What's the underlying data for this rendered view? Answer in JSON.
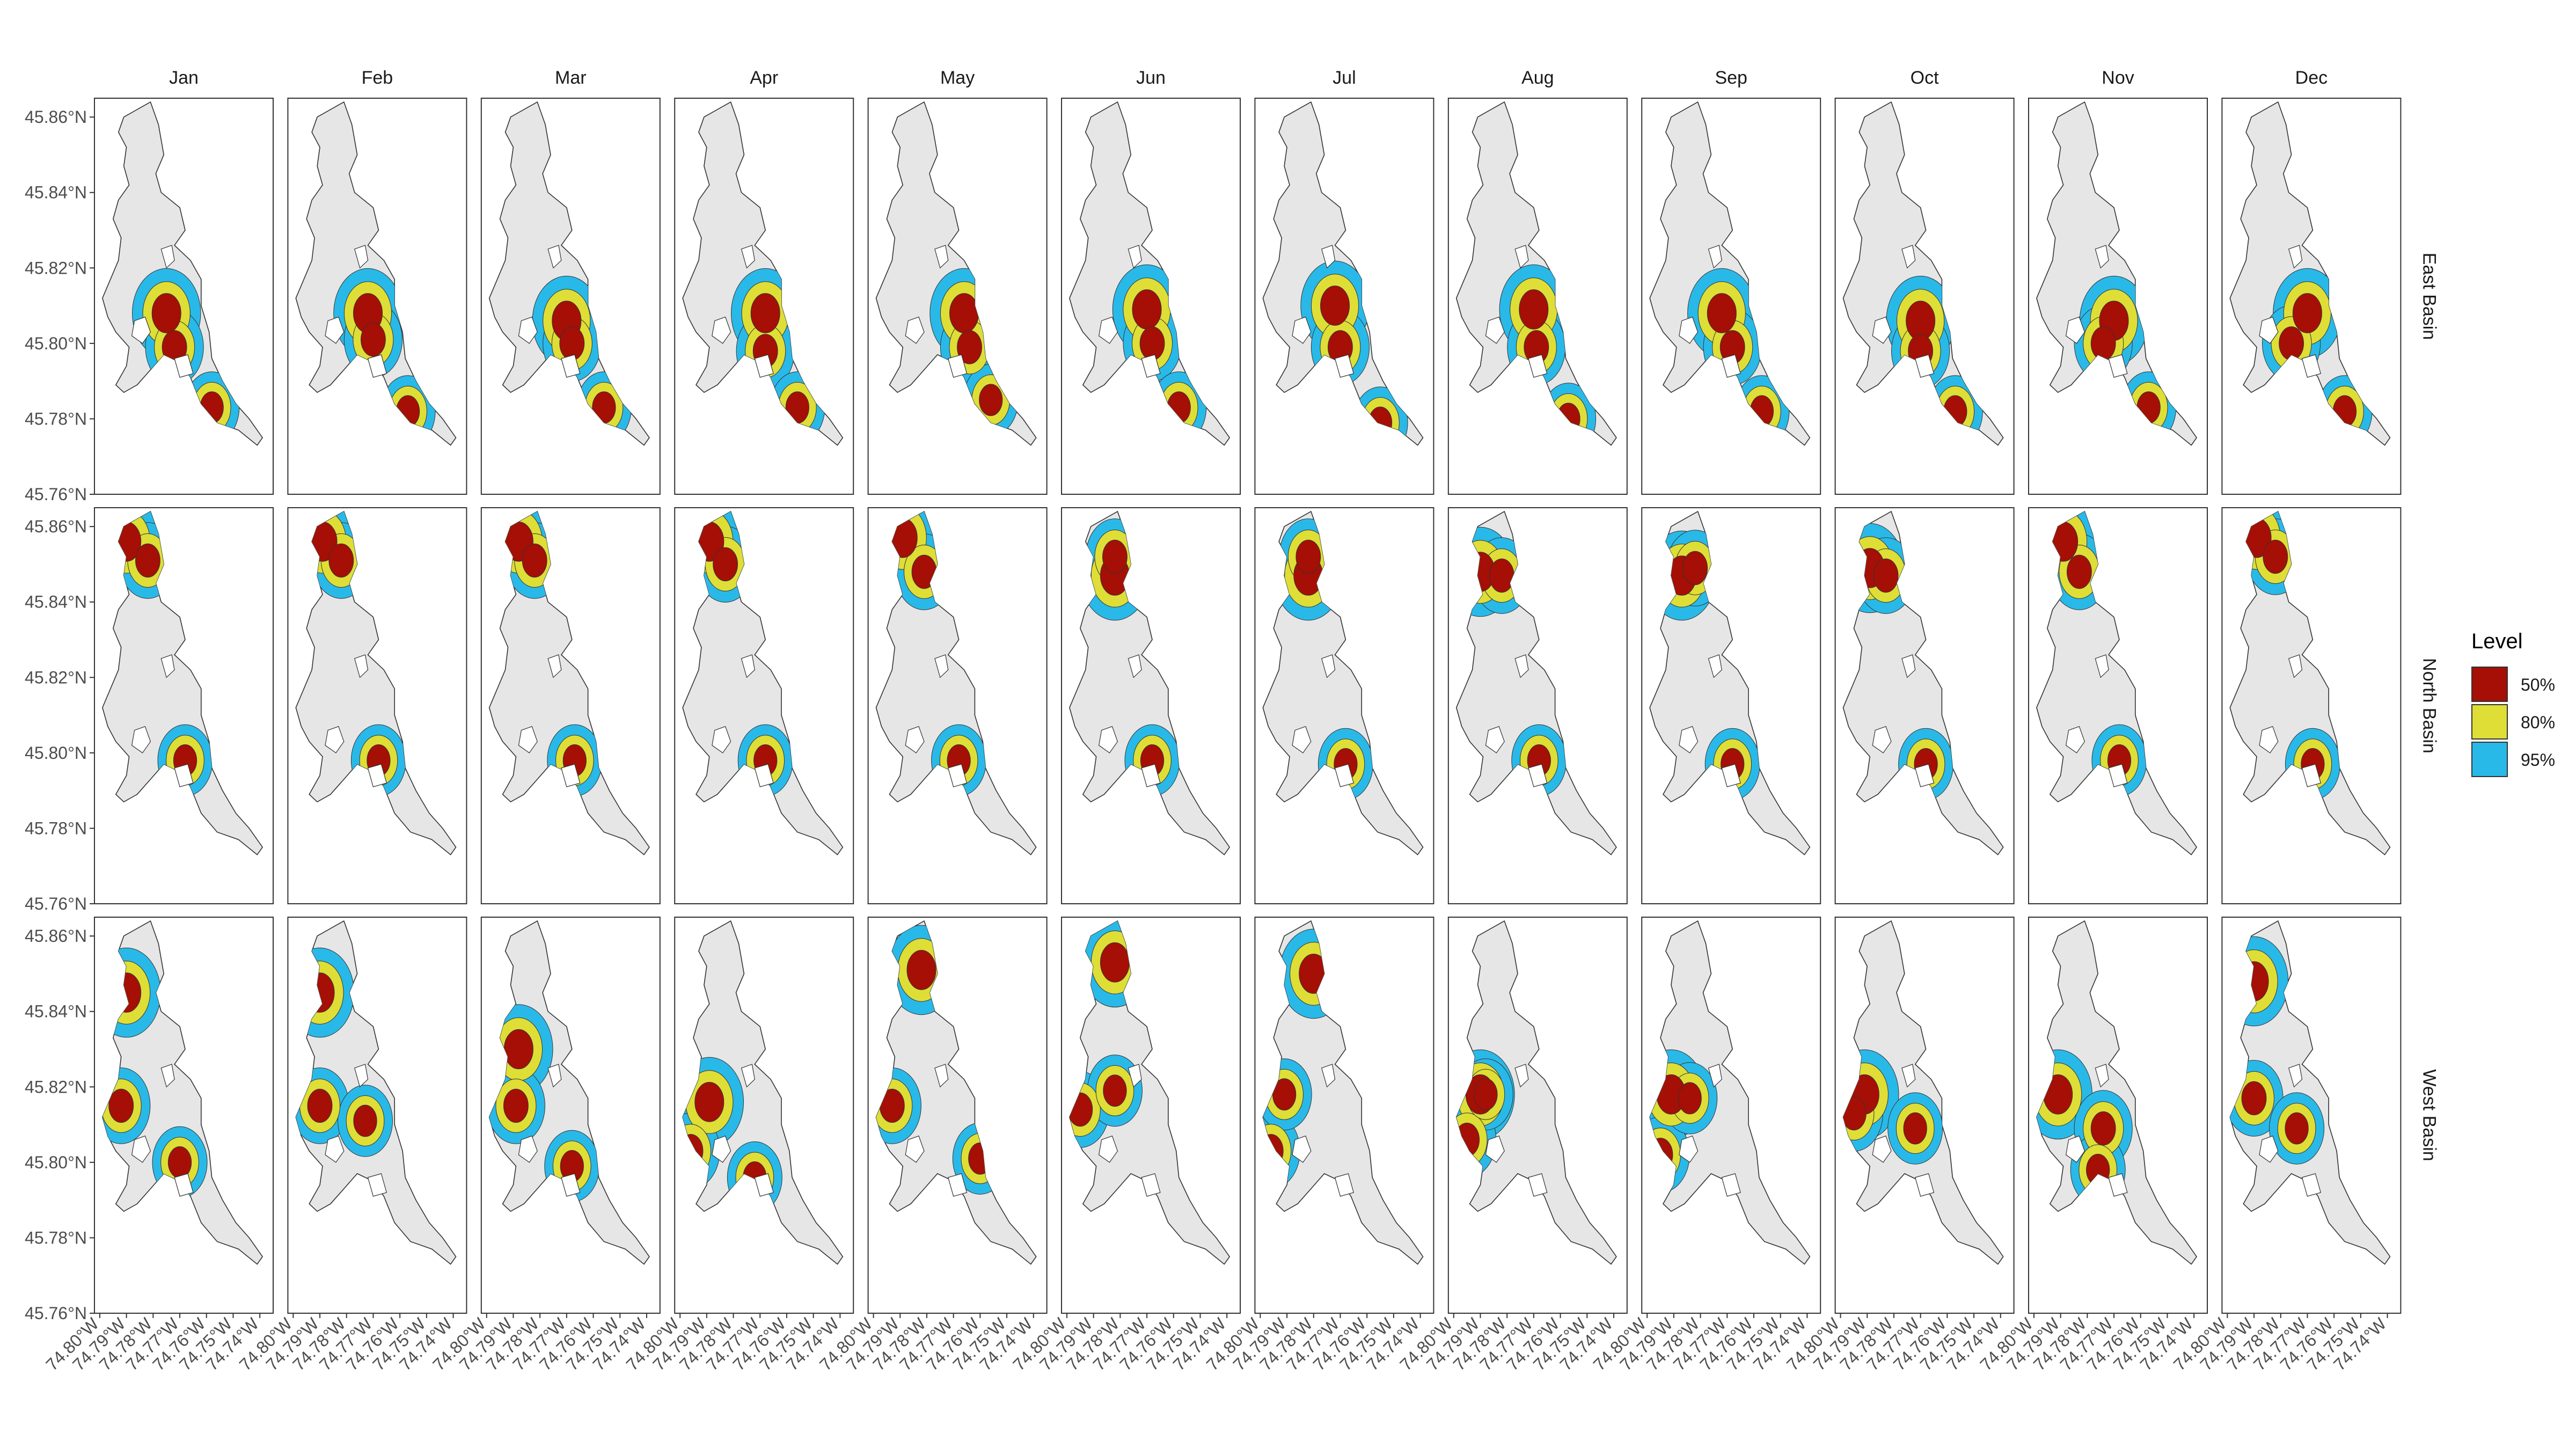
{
  "chart_data": {
    "type": "contour-map-facets",
    "facet_columns": [
      "Jan",
      "Feb",
      "Mar",
      "Apr",
      "May",
      "Jun",
      "Jul",
      "Aug",
      "Sep",
      "Oct",
      "Nov",
      "Dec"
    ],
    "facet_rows": [
      "East Basin",
      "North Basin",
      "West Basin"
    ],
    "y_ticks": [
      "45.86°N",
      "45.84°N",
      "45.82°N",
      "45.80°N",
      "45.78°N",
      "45.76°N"
    ],
    "y_values": [
      45.86,
      45.84,
      45.82,
      45.8,
      45.78,
      45.76
    ],
    "ylim": [
      45.76,
      45.865
    ],
    "x_ticks": [
      "74.80°W",
      "74.79°W",
      "74.78°W",
      "74.77°W",
      "74.76°W",
      "74.75°W",
      "74.74°W"
    ],
    "x_values": [
      -74.8,
      -74.79,
      -74.78,
      -74.77,
      -74.76,
      -74.75,
      -74.74
    ],
    "xlim": [
      -74.802,
      -74.735
    ],
    "legend": {
      "title": "Level",
      "position": "right",
      "entries": [
        {
          "label": "50%",
          "color": "#a50f05"
        },
        {
          "label": "80%",
          "color": "#dede36"
        },
        {
          "label": "95%",
          "color": "#29b9e8"
        }
      ]
    },
    "lake_fill": "#e6e6e6",
    "grid": false,
    "density_centers": {
      "East Basin": [
        [
          [
            -74.775,
            45.808
          ],
          [
            -74.772,
            45.799
          ],
          [
            -74.758,
            45.783
          ]
        ],
        [
          [
            -74.772,
            45.808
          ],
          [
            -74.77,
            45.801
          ],
          [
            -74.757,
            45.782
          ]
        ],
        [
          [
            -74.77,
            45.806
          ],
          [
            -74.768,
            45.8
          ],
          [
            -74.756,
            45.783
          ]
        ],
        [
          [
            -74.768,
            45.808
          ],
          [
            -74.768,
            45.798
          ],
          [
            -74.756,
            45.783
          ]
        ],
        [
          [
            -74.766,
            45.808
          ],
          [
            -74.764,
            45.799
          ],
          [
            -74.756,
            45.785
          ]
        ],
        [
          [
            -74.77,
            45.809
          ],
          [
            -74.768,
            45.8
          ],
          [
            -74.758,
            45.783
          ]
        ],
        [
          [
            -74.772,
            45.81
          ],
          [
            -74.77,
            45.799
          ],
          [
            -74.755,
            45.779
          ]
        ],
        [
          [
            -74.77,
            45.809
          ],
          [
            -74.769,
            45.799
          ],
          [
            -74.757,
            45.78
          ]
        ],
        [
          [
            -74.772,
            45.808
          ],
          [
            -74.768,
            45.799
          ],
          [
            -74.757,
            45.782
          ]
        ],
        [
          [
            -74.77,
            45.806
          ],
          [
            -74.77,
            45.798
          ],
          [
            -74.757,
            45.782
          ]
        ],
        [
          [
            -74.77,
            45.806
          ],
          [
            -74.774,
            45.8
          ],
          [
            -74.757,
            45.783
          ]
        ],
        [
          [
            -74.77,
            45.808
          ],
          [
            -74.776,
            45.8
          ],
          [
            -74.756,
            45.782
          ]
        ]
      ],
      "North Basin": [
        [
          [
            -74.79,
            45.856
          ],
          [
            -74.782,
            45.851
          ],
          [
            -74.768,
            45.798
          ]
        ],
        [
          [
            -74.789,
            45.856
          ],
          [
            -74.782,
            45.851
          ],
          [
            -74.768,
            45.798
          ]
        ],
        [
          [
            -74.788,
            45.856
          ],
          [
            -74.782,
            45.851
          ],
          [
            -74.767,
            45.798
          ]
        ],
        [
          [
            -74.789,
            45.856
          ],
          [
            -74.783,
            45.85
          ],
          [
            -74.768,
            45.798
          ]
        ],
        [
          [
            -74.789,
            45.857
          ],
          [
            -74.781,
            45.848
          ],
          [
            -74.768,
            45.798
          ]
        ],
        [
          [
            -74.782,
            45.847
          ],
          [
            -74.782,
            45.852
          ],
          [
            -74.768,
            45.798
          ]
        ],
        [
          [
            -74.782,
            45.847
          ],
          [
            -74.782,
            45.852
          ],
          [
            -74.768,
            45.797
          ]
        ],
        [
          [
            -74.79,
            45.848
          ],
          [
            -74.782,
            45.847
          ],
          [
            -74.768,
            45.798
          ]
        ],
        [
          [
            -74.787,
            45.847
          ],
          [
            -74.782,
            45.849
          ],
          [
            -74.768,
            45.797
          ]
        ],
        [
          [
            -74.789,
            45.849
          ],
          [
            -74.783,
            45.847
          ],
          [
            -74.768,
            45.797
          ]
        ],
        [
          [
            -74.789,
            45.856
          ],
          [
            -74.783,
            45.848
          ],
          [
            -74.768,
            45.798
          ]
        ],
        [
          [
            -74.789,
            45.857
          ],
          [
            -74.782,
            45.852
          ],
          [
            -74.768,
            45.797
          ]
        ]
      ],
      "West Basin": [
        [
          [
            -74.79,
            45.845
          ],
          [
            -74.792,
            45.815
          ],
          [
            -74.77,
            45.8
          ]
        ],
        [
          [
            -74.79,
            45.845
          ],
          [
            -74.79,
            45.815
          ],
          [
            -74.773,
            45.811
          ]
        ],
        [
          [
            -74.788,
            45.83
          ],
          [
            -74.789,
            45.815
          ],
          [
            -74.768,
            45.799
          ]
        ],
        [
          [
            -74.789,
            45.816
          ],
          [
            -74.796,
            45.803
          ],
          [
            -74.772,
            45.796
          ]
        ],
        [
          [
            -74.782,
            45.851
          ],
          [
            -74.793,
            45.815
          ],
          [
            -74.76,
            45.801
          ]
        ],
        [
          [
            -74.782,
            45.853
          ],
          [
            -74.795,
            45.814
          ],
          [
            -74.782,
            45.819
          ]
        ],
        [
          [
            -74.78,
            45.85
          ],
          [
            -74.796,
            45.803
          ],
          [
            -74.791,
            45.818
          ]
        ],
        [
          [
            -74.79,
            45.818
          ],
          [
            -74.795,
            45.806
          ],
          [
            -74.788,
            45.818
          ]
        ],
        [
          [
            -74.791,
            45.818
          ],
          [
            -74.795,
            45.802
          ],
          [
            -74.784,
            45.817
          ]
        ],
        [
          [
            -74.791,
            45.818
          ],
          [
            -74.795,
            45.813
          ],
          [
            -74.772,
            45.809
          ]
        ],
        [
          [
            -74.791,
            45.818
          ],
          [
            -74.774,
            45.809
          ],
          [
            -74.776,
            45.798
          ]
        ],
        [
          [
            -74.79,
            45.848
          ],
          [
            -74.79,
            45.817
          ],
          [
            -74.774,
            45.809
          ]
        ]
      ]
    }
  }
}
